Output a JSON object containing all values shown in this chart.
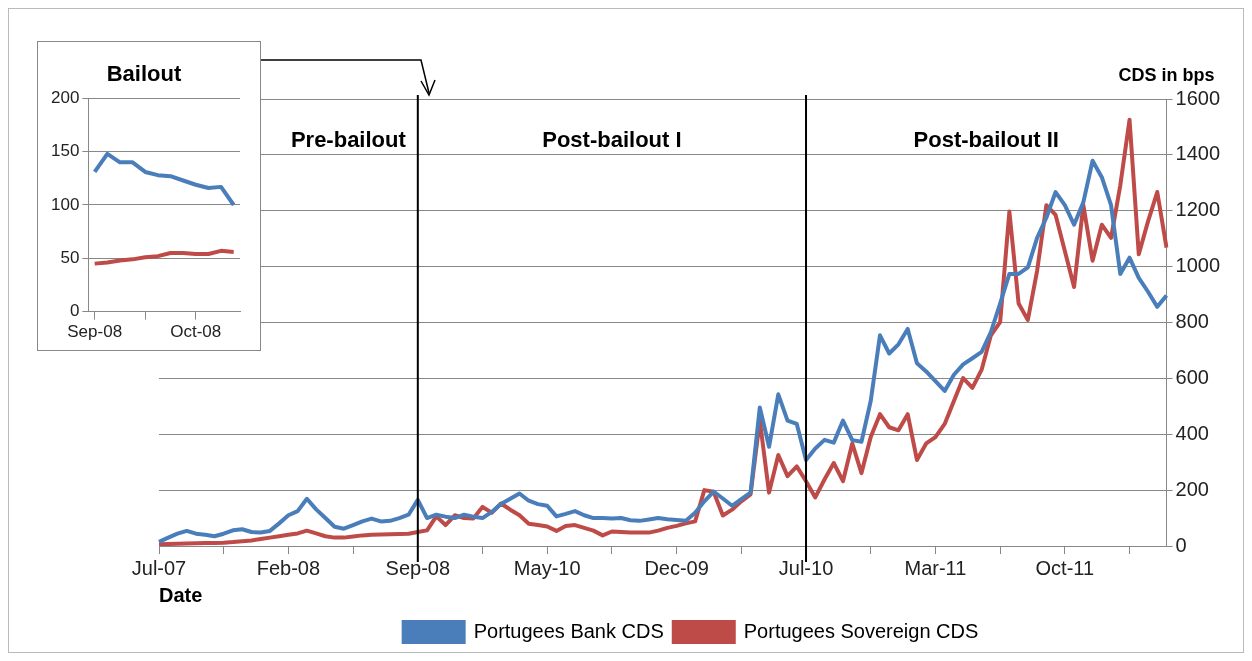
{
  "chart_data": [
    {
      "type": "line",
      "xlabel": "Date",
      "ylabel": "CDS in bps",
      "ylim": [
        0,
        1600
      ],
      "categories": [
        "Jul-07",
        null,
        null,
        null,
        null,
        null,
        null,
        null,
        null,
        null,
        null,
        null,
        null,
        null,
        "Feb-08",
        null,
        null,
        null,
        null,
        null,
        null,
        null,
        null,
        null,
        null,
        null,
        null,
        null,
        "Sep-08",
        null,
        null,
        null,
        null,
        null,
        null,
        null,
        null,
        null,
        null,
        null,
        null,
        null,
        "May-10",
        null,
        null,
        null,
        null,
        null,
        null,
        null,
        null,
        null,
        null,
        null,
        null,
        null,
        "Dec-09",
        null,
        null,
        null,
        null,
        null,
        null,
        null,
        null,
        null,
        null,
        null,
        null,
        null,
        "Jul-10",
        null,
        null,
        null,
        null,
        null,
        null,
        null,
        null,
        null,
        null,
        null,
        null,
        null,
        "Mar-11",
        null,
        null,
        null,
        null,
        null,
        null,
        null,
        null,
        null,
        null,
        null,
        null,
        null,
        "Oct-11",
        null,
        null,
        null,
        null,
        null,
        null,
        null,
        null,
        null,
        null,
        null
      ],
      "yticks": [
        0,
        200,
        400,
        600,
        800,
        1000,
        1200,
        1400,
        1600
      ],
      "grid": "y",
      "legend": "bottom",
      "marker": "none",
      "ref_lines": [
        {
          "axis": "x",
          "value": "Sep-08",
          "color": "#000000"
        },
        {
          "axis": "x",
          "value": "Jul-10",
          "color": "#000000"
        }
      ],
      "annotations": [
        "Pre-bailout",
        "Post-bailout I",
        "Post-bailout II"
      ],
      "series": [
        {
          "name": "Portugees Bank CDS",
          "color": "#4a7ebb",
          "values": [
            15,
            30,
            44,
            54,
            44,
            40,
            35,
            44,
            56,
            60,
            50,
            48,
            54,
            81,
            110,
            125,
            169,
            131,
            100,
            69,
            62,
            75,
            88,
            98,
            88,
            90,
            100,
            112,
            165,
            100,
            112,
            105,
            100,
            112,
            105,
            100,
            122,
            150,
            169,
            188,
            162,
            150,
            144,
            106,
            115,
            125,
            110,
            100,
            100,
            98,
            100,
            92,
            90,
            95,
            100,
            96,
            93,
            90,
            119,
            160,
            195,
            170,
            144,
            168,
            191,
            496,
            355,
            543,
            449,
            437,
            308,
            349,
            380,
            370,
            449,
            379,
            373,
            519,
            754,
            689,
            722,
            777,
            654,
            625,
            590,
            555,
            613,
            650,
            672,
            695,
            766,
            868,
            974,
            974,
            997,
            1103,
            1175,
            1267,
            1220,
            1150,
            1230,
            1379,
            1320,
            1220,
            974,
            1032,
            960,
            910,
            856,
            897
          ]
        },
        {
          "name": "Portugees Sovereign CDS",
          "color": "#be4b48",
          "values": [
            6,
            7,
            8,
            9,
            10,
            11,
            11,
            12,
            14,
            17,
            20,
            25,
            30,
            35,
            40,
            45,
            55,
            45,
            35,
            30,
            30,
            34,
            38,
            40,
            41,
            42,
            43,
            44,
            50,
            56,
            106,
            75,
            110,
            100,
            98,
            140,
            119,
            152,
            130,
            110,
            80,
            75,
            70,
            54,
            72,
            75,
            65,
            55,
            38,
            52,
            50,
            48,
            48,
            48,
            55,
            65,
            72,
            81,
            88,
            200,
            194,
            109,
            130,
            160,
            185,
            449,
            191,
            326,
            250,
            285,
            232,
            174,
            238,
            297,
            232,
            367,
            261,
            390,
            472,
            425,
            414,
            472,
            308,
            367,
            390,
            437,
            519,
            601,
            566,
            631,
            754,
            801,
            1197,
            868,
            809,
            985,
            1220,
            1185,
            1056,
            927,
            1220,
            1021,
            1150,
            1103,
            1291,
            1526,
            1044,
            1162,
            1267,
            1068
          ]
        }
      ]
    },
    {
      "type": "line",
      "title": "Bailout",
      "categories": [
        "Sep-08",
        null,
        null,
        null,
        null,
        null,
        null,
        null,
        "Oct-08",
        null,
        null,
        null
      ],
      "ylim": [
        0,
        200
      ],
      "yticks": [
        0,
        50,
        100,
        150,
        200
      ],
      "grid": "y",
      "marker": "none",
      "series": [
        {
          "color": "#4a7ebb",
          "values": [
            131,
            148,
            140,
            140,
            131,
            128,
            127,
            123,
            119,
            116,
            117,
            100
          ]
        },
        {
          "color": "#be4b48",
          "values": [
            45,
            46,
            48,
            49,
            51,
            52,
            55,
            55,
            54,
            54,
            57,
            56
          ]
        }
      ]
    }
  ]
}
